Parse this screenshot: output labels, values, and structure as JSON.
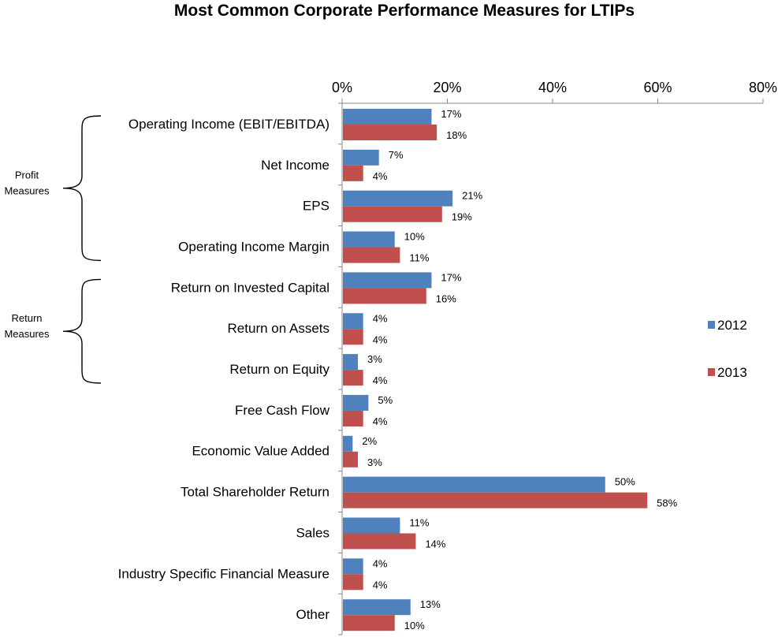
{
  "chart_data": {
    "type": "bar",
    "orientation": "horizontal",
    "title": "Most Common Corporate Performance Measures for LTIPs",
    "categories": [
      "Operating Income (EBIT/EBITDA)",
      "Net Income",
      "EPS",
      "Operating Income Margin",
      "Return on Invested Capital",
      "Return on Assets",
      "Return on Equity",
      "Free Cash Flow",
      "Economic Value Added",
      "Total Shareholder Return",
      "Sales",
      "Industry Specific Financial Measure",
      "Other"
    ],
    "series": [
      {
        "name": "2012",
        "color": "#4F81BD",
        "values": [
          17,
          7,
          21,
          10,
          17,
          4,
          3,
          5,
          2,
          50,
          11,
          4,
          13
        ]
      },
      {
        "name": "2013",
        "color": "#C0504D",
        "values": [
          18,
          4,
          19,
          11,
          16,
          4,
          4,
          4,
          3,
          58,
          14,
          4,
          10
        ]
      }
    ],
    "xlim": [
      0,
      80
    ],
    "x_ticks": [
      "0%",
      "20%",
      "40%",
      "60%",
      "80%"
    ],
    "x_axis_position": "top",
    "legend_placement": "right",
    "grid": false,
    "value_suffix": "%",
    "groups": [
      {
        "label_lines": [
          "Profit",
          "Measures"
        ],
        "first": 0,
        "last": 3
      },
      {
        "label_lines": [
          "Return",
          "Measures"
        ],
        "first": 4,
        "last": 6
      }
    ]
  }
}
